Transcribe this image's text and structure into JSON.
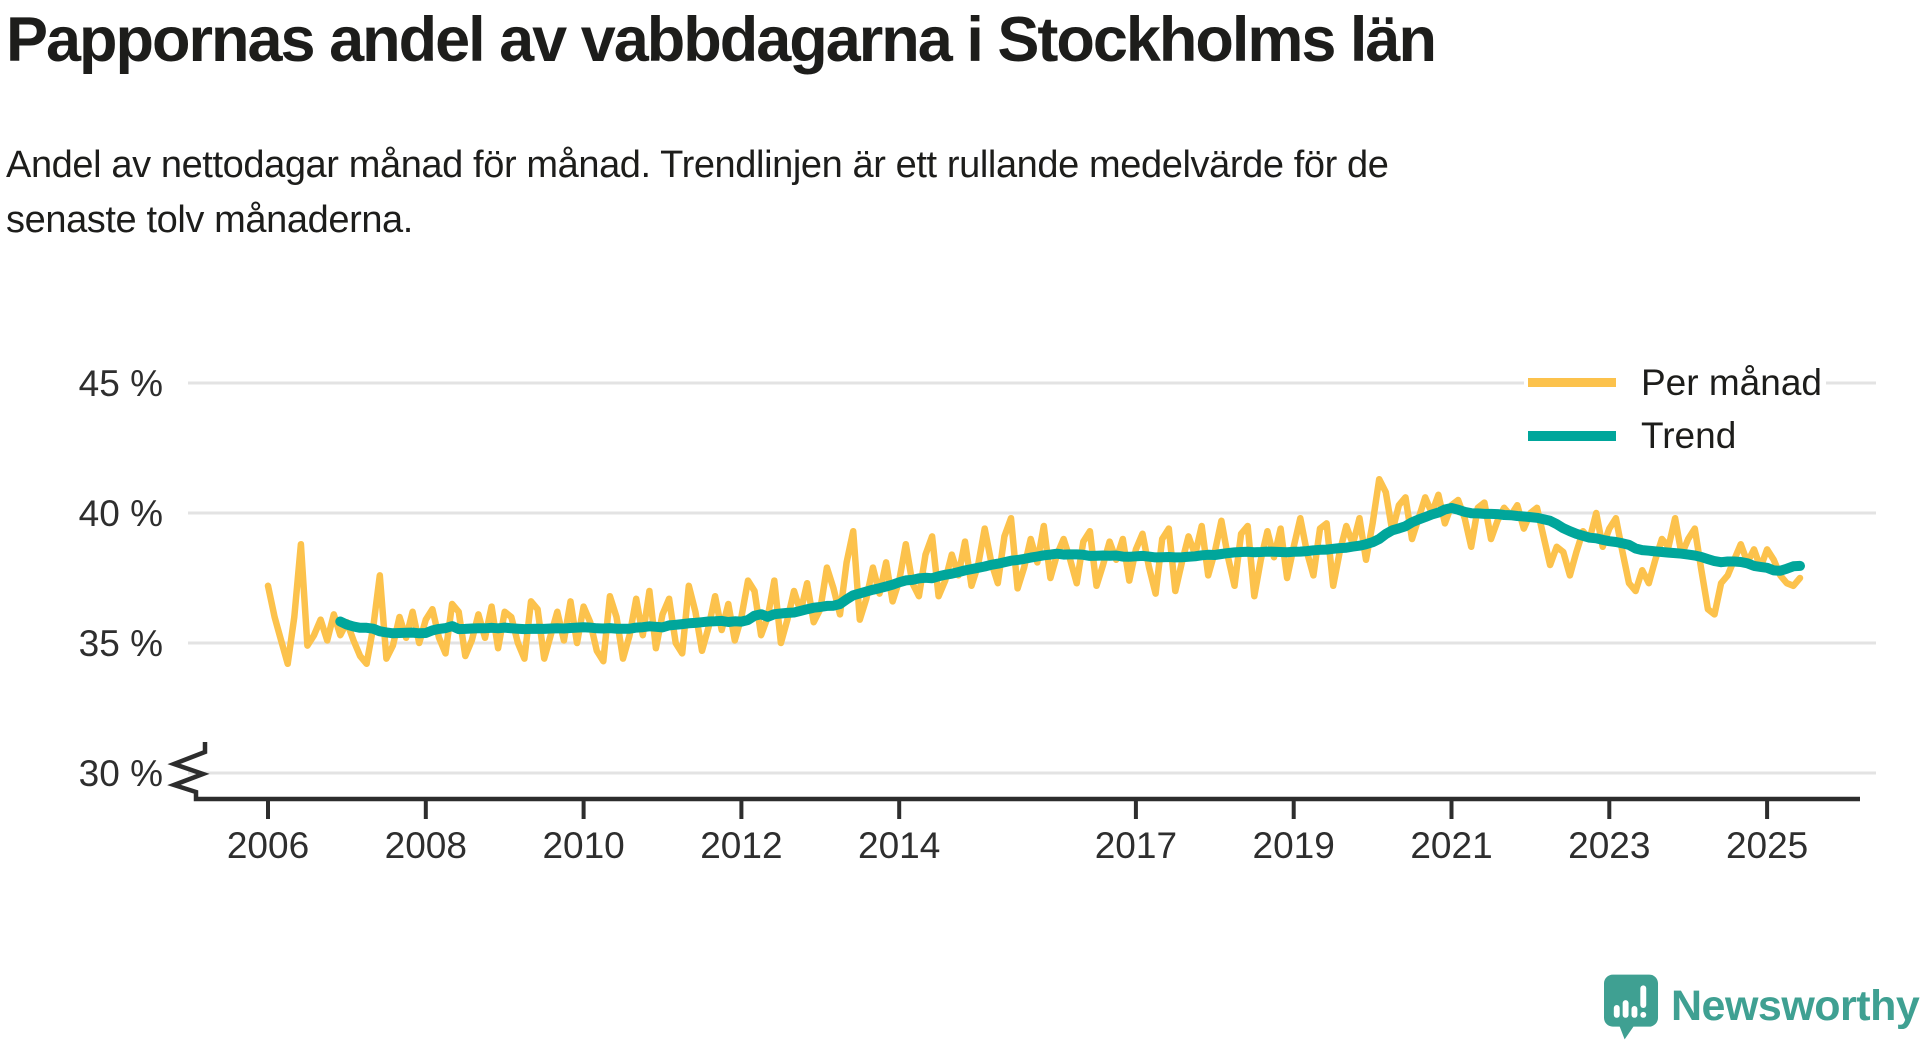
{
  "header": {
    "title": "Pappornas andel av vabbdagarna i Stockholms län",
    "subtitle": "Andel av nettodagar månad för månad. Trendlinjen är ett rullande medelvärde för de senaste tolv månaderna."
  },
  "legend": {
    "position": "top-right",
    "items": [
      {
        "label": "Per månad",
        "color": "#fcc24c"
      },
      {
        "label": "Trend",
        "color": "#00a69b"
      }
    ]
  },
  "footer": {
    "brand": "Newsworthy",
    "brand_color": "#3fa092"
  },
  "colors": {
    "text": "#1d1d1b",
    "axis_line": "#2d2d2d",
    "gridline": "#e3e3e3",
    "tick_text": "#2e2e2e"
  },
  "chart_data": {
    "type": "line",
    "title": "Pappornas andel av vabbdagarna i Stockholms län",
    "unit": "%",
    "x_start": "2006-01",
    "x_end": "2025-06",
    "ylim": [
      30,
      45
    ],
    "y_axis_break_below": 30,
    "grid": "horizontal-only",
    "legend_position": "top-right",
    "y_ticks": [
      {
        "value": 45,
        "label": "45 %"
      },
      {
        "value": 40,
        "label": "40 %"
      },
      {
        "value": 35,
        "label": "35 %"
      },
      {
        "value": 30,
        "label": "30 %"
      }
    ],
    "x_ticks": [
      {
        "year": 2006,
        "label": "2006"
      },
      {
        "year": 2008,
        "label": "2008"
      },
      {
        "year": 2010,
        "label": "2010"
      },
      {
        "year": 2012,
        "label": "2012"
      },
      {
        "year": 2014,
        "label": "2014"
      },
      {
        "year": 2017,
        "label": "2017"
      },
      {
        "year": 2019,
        "label": "2019"
      },
      {
        "year": 2021,
        "label": "2021"
      },
      {
        "year": 2023,
        "label": "2023"
      },
      {
        "year": 2025,
        "label": "2025"
      }
    ],
    "series": [
      {
        "name": "Per månad",
        "color": "#fcc24c",
        "monthly_values_percent": [
          37.2,
          36.0,
          35.1,
          34.2,
          36.0,
          38.8,
          34.9,
          35.3,
          35.9,
          35.1,
          36.1,
          35.3,
          35.8,
          35.1,
          34.5,
          34.2,
          35.6,
          37.6,
          34.4,
          34.9,
          36.0,
          35.2,
          36.2,
          35.0,
          35.9,
          36.3,
          35.2,
          34.6,
          36.5,
          36.2,
          34.5,
          35.1,
          36.1,
          35.2,
          36.4,
          34.8,
          36.2,
          36.0,
          35.0,
          34.4,
          36.6,
          36.3,
          34.4,
          35.3,
          36.2,
          35.1,
          36.6,
          35.0,
          36.4,
          35.8,
          34.7,
          34.3,
          36.8,
          36.0,
          34.4,
          35.3,
          36.7,
          35.3,
          37.0,
          34.8,
          36.1,
          36.7,
          35.0,
          34.6,
          37.2,
          36.2,
          34.7,
          35.6,
          36.8,
          35.5,
          36.5,
          35.1,
          36.0,
          37.4,
          37.0,
          35.3,
          36.0,
          37.4,
          35.0,
          35.9,
          37.0,
          36.2,
          37.3,
          35.8,
          36.3,
          37.9,
          37.1,
          36.1,
          38.1,
          39.3,
          35.9,
          36.7,
          37.9,
          36.9,
          38.1,
          36.6,
          37.4,
          38.8,
          37.3,
          36.8,
          38.4,
          39.1,
          36.8,
          37.4,
          38.4,
          37.6,
          38.9,
          37.2,
          38.0,
          39.4,
          38.1,
          37.3,
          39.1,
          39.8,
          37.1,
          37.9,
          39.0,
          38.1,
          39.5,
          37.5,
          38.4,
          39.0,
          38.2,
          37.3,
          38.9,
          39.3,
          37.2,
          38.0,
          38.9,
          38.2,
          39.0,
          37.4,
          38.6,
          39.2,
          37.9,
          36.9,
          39.0,
          39.4,
          37.0,
          38.1,
          39.1,
          38.4,
          39.5,
          37.6,
          38.5,
          39.7,
          38.3,
          37.2,
          39.2,
          39.5,
          36.8,
          38.2,
          39.3,
          38.3,
          39.4,
          37.5,
          38.7,
          39.8,
          38.5,
          37.6,
          39.4,
          39.6,
          37.2,
          38.5,
          39.5,
          38.8,
          39.8,
          38.2,
          39.6,
          41.3,
          40.8,
          39.3,
          40.3,
          40.6,
          39.0,
          39.8,
          40.6,
          40.0,
          40.7,
          39.6,
          40.3,
          40.5,
          39.8,
          38.7,
          40.2,
          40.4,
          39.0,
          39.7,
          40.2,
          39.9,
          40.3,
          39.4,
          40.0,
          40.2,
          39.1,
          38.0,
          38.7,
          38.5,
          37.6,
          38.5,
          39.3,
          39.0,
          40.0,
          38.7,
          39.4,
          39.8,
          38.5,
          37.3,
          37.0,
          37.8,
          37.3,
          38.2,
          39.0,
          38.7,
          39.8,
          38.4,
          39.0,
          39.4,
          37.8,
          36.3,
          36.1,
          37.3,
          37.6,
          38.2,
          38.8,
          38.1,
          38.6,
          37.9,
          38.6,
          38.2,
          37.6,
          37.3,
          37.2,
          37.5
        ]
      },
      {
        "name": "Trend",
        "color": "#00a69b",
        "derivation": "rolling 12-month mean of Per månad"
      }
    ]
  }
}
